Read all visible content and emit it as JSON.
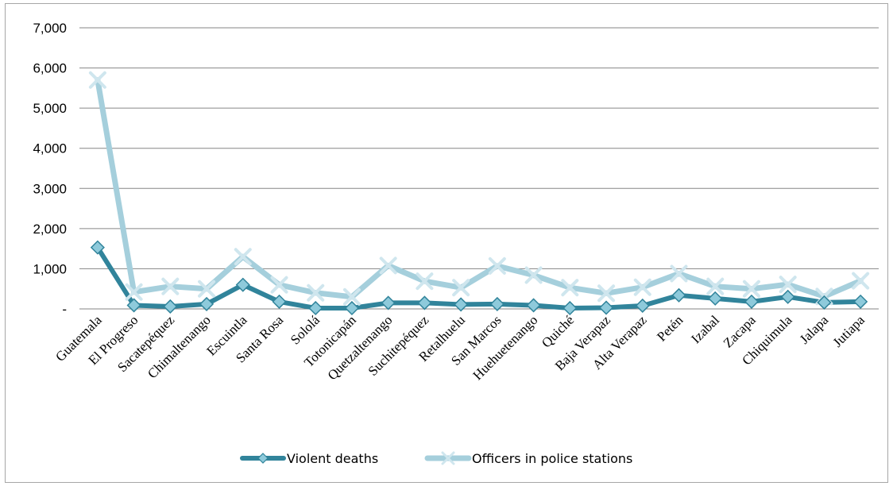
{
  "chart_data": {
    "type": "line",
    "title": "",
    "xlabel": "",
    "ylabel": "",
    "categories": [
      "Guatemala",
      "El Progreso",
      "Sacatepéquez",
      "Chimaltenango",
      "Escuintla",
      "Santa Rosa",
      "Sololá",
      "Totonicapán",
      "Quetzaltenango",
      "Suchitepéquez",
      "Retalhuelu",
      "San Marcos",
      "Huehuetenango",
      "Quiché",
      "Baja Verapaz",
      "Alta Verapaz",
      "Petén",
      "Izabal",
      "Zacapa",
      "Chiquimula",
      "Jalapa",
      "Jutiapa"
    ],
    "y_ticks": [
      "-",
      "1,000",
      "2,000",
      "3,000",
      "4,000",
      "5,000",
      "6,000",
      "7,000"
    ],
    "ylim": [
      0,
      7000
    ],
    "grid": true,
    "legend_position": "bottom",
    "series": [
      {
        "name": "Violent deaths",
        "color": "#31849b",
        "marker": "diamond",
        "values": [
          1530,
          90,
          60,
          120,
          600,
          180,
          20,
          20,
          150,
          150,
          110,
          120,
          90,
          20,
          30,
          80,
          340,
          260,
          180,
          300,
          160,
          180
        ]
      },
      {
        "name": "Officers in police stations",
        "color": "#a5cfdc",
        "marker": "cross",
        "values": [
          5700,
          420,
          560,
          500,
          1300,
          600,
          400,
          300,
          1080,
          690,
          530,
          1070,
          840,
          530,
          390,
          540,
          880,
          560,
          500,
          610,
          310,
          700
        ]
      }
    ]
  }
}
